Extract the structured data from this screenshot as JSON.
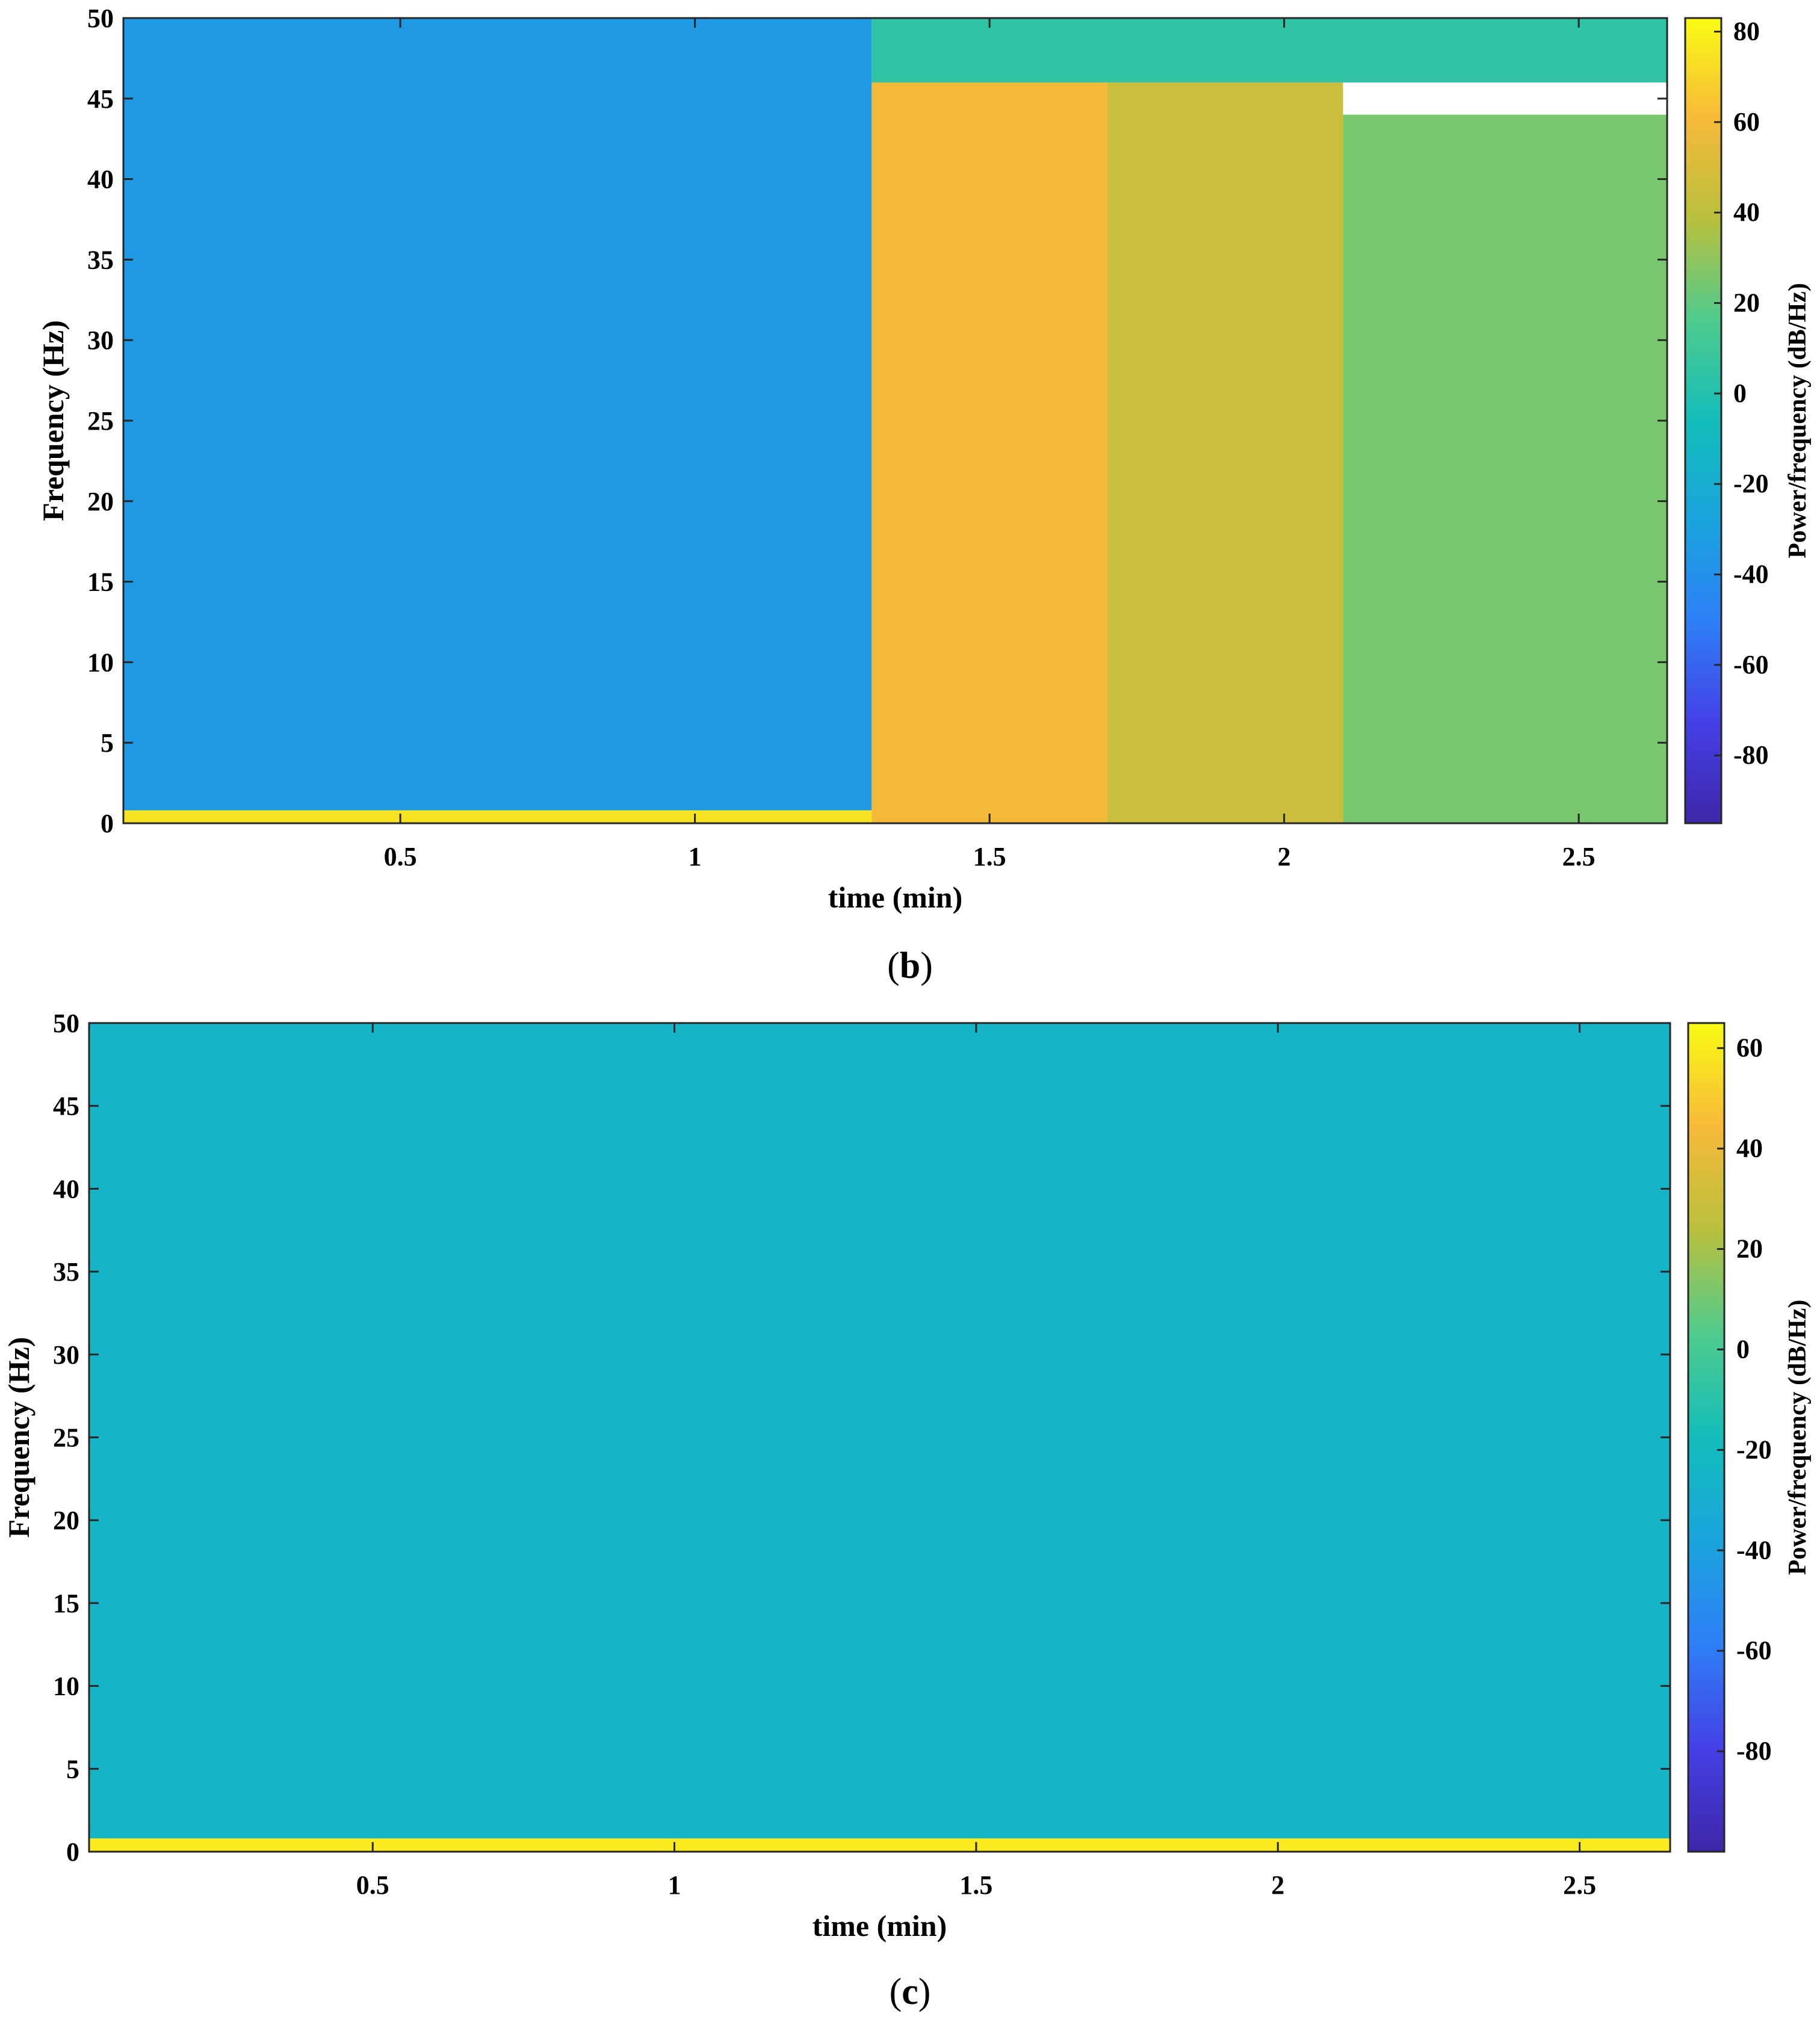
{
  "chart_data": [
    {
      "type": "heatmap",
      "panel_label": "b",
      "xlabel": "time (min)",
      "ylabel": "Frequency (Hz)",
      "xlim": [
        0.03,
        2.65
      ],
      "ylim": [
        0,
        50
      ],
      "x_ticks": [
        0.5,
        1,
        1.5,
        2,
        2.5
      ],
      "x_tick_labels": [
        "0.5",
        "1",
        "1.5",
        "2",
        "2.5"
      ],
      "y_ticks": [
        0,
        5,
        10,
        15,
        20,
        25,
        30,
        35,
        40,
        45,
        50
      ],
      "y_tick_labels": [
        "0",
        "5",
        "10",
        "15",
        "20",
        "25",
        "30",
        "35",
        "40",
        "45",
        "50"
      ],
      "colorbar": {
        "label": "Power/frequency (dB/Hz)",
        "range": [
          -95,
          83
        ],
        "ticks": [
          80,
          60,
          40,
          20,
          0,
          -20,
          -40,
          -60,
          -80
        ],
        "tick_labels": [
          "80",
          "60",
          "40",
          "20",
          "0",
          "-20",
          "-40",
          "-60",
          "-80"
        ],
        "colormap": "parula"
      },
      "regions": [
        {
          "t_start": 0.03,
          "t_end": 1.3,
          "f_start": 0.8,
          "f_end": 50,
          "power_db": -35
        },
        {
          "t_start": 0.03,
          "t_end": 1.3,
          "f_start": 0,
          "f_end": 0.8,
          "power_db": 75
        },
        {
          "t_start": 1.3,
          "t_end": 1.7,
          "f_start": 0,
          "f_end": 46,
          "power_db": 60
        },
        {
          "t_start": 1.7,
          "t_end": 2.1,
          "f_start": 0,
          "f_end": 46,
          "power_db": 45
        },
        {
          "t_start": 2.1,
          "t_end": 2.65,
          "f_start": 0,
          "f_end": 44,
          "power_db": 25
        },
        {
          "t_start": 1.3,
          "t_end": 2.65,
          "f_start": 46,
          "f_end": 50,
          "power_db": 5
        }
      ]
    },
    {
      "type": "heatmap",
      "panel_label": "c",
      "xlabel": "time (min)",
      "ylabel": "Frequency (Hz)",
      "xlim": [
        0.03,
        2.65
      ],
      "ylim": [
        0,
        50
      ],
      "x_ticks": [
        0.5,
        1,
        1.5,
        2,
        2.5
      ],
      "x_tick_labels": [
        "0.5",
        "1",
        "1.5",
        "2",
        "2.5"
      ],
      "y_ticks": [
        0,
        5,
        10,
        15,
        20,
        25,
        30,
        35,
        40,
        45,
        50
      ],
      "y_tick_labels": [
        "0",
        "5",
        "10",
        "15",
        "20",
        "25",
        "30",
        "35",
        "40",
        "45",
        "50"
      ],
      "colorbar": {
        "label": "Power/frequency (dB/Hz)",
        "range": [
          -100,
          65
        ],
        "ticks": [
          60,
          40,
          20,
          0,
          -20,
          -40,
          -60,
          -80
        ],
        "tick_labels": [
          "60",
          "40",
          "20",
          "0",
          "-20",
          "-40",
          "-60",
          "-80"
        ],
        "colormap": "parula"
      },
      "regions": [
        {
          "t_start": 0.03,
          "t_end": 2.65,
          "f_start": 0.8,
          "f_end": 50,
          "power_db": -25
        },
        {
          "t_start": 0.03,
          "t_end": 2.65,
          "f_start": 0,
          "f_end": 0.8,
          "power_db": 60
        }
      ]
    }
  ]
}
